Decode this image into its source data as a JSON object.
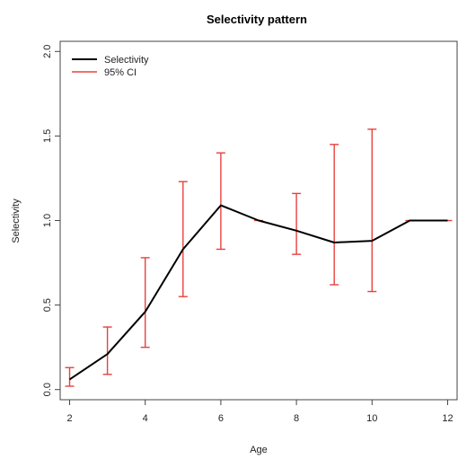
{
  "chart_data": {
    "type": "line",
    "title": "Selectivity pattern",
    "xlabel": "Age",
    "ylabel": "Selectivity",
    "xlim": [
      1.75,
      12.25
    ],
    "ylim": [
      -0.06,
      2.06
    ],
    "x_ticks": [
      2,
      4,
      6,
      8,
      10,
      12
    ],
    "y_ticks": [
      0.0,
      0.5,
      1.0,
      1.5,
      2.0
    ],
    "y_tick_labels": [
      "0.0",
      "0.5",
      "1.0",
      "1.5",
      "2.0"
    ],
    "x": [
      2,
      3,
      4,
      5,
      6,
      7,
      8,
      9,
      10,
      11,
      12
    ],
    "series": [
      {
        "name": "Selectivity",
        "color": "#000000",
        "values": [
          0.06,
          0.21,
          0.46,
          0.83,
          1.09,
          1.0,
          0.94,
          0.87,
          0.88,
          1.0,
          1.0
        ]
      }
    ],
    "ci": {
      "name": "95% CI",
      "color": "#e8413e",
      "lower": [
        0.02,
        0.09,
        0.25,
        0.55,
        0.83,
        1.0,
        0.8,
        0.62,
        0.58,
        1.0,
        1.0
      ],
      "upper": [
        0.13,
        0.37,
        0.78,
        1.23,
        1.4,
        1.0,
        1.16,
        1.45,
        1.54,
        1.0,
        1.0
      ]
    },
    "legend_position": "top-left",
    "grid": false
  }
}
